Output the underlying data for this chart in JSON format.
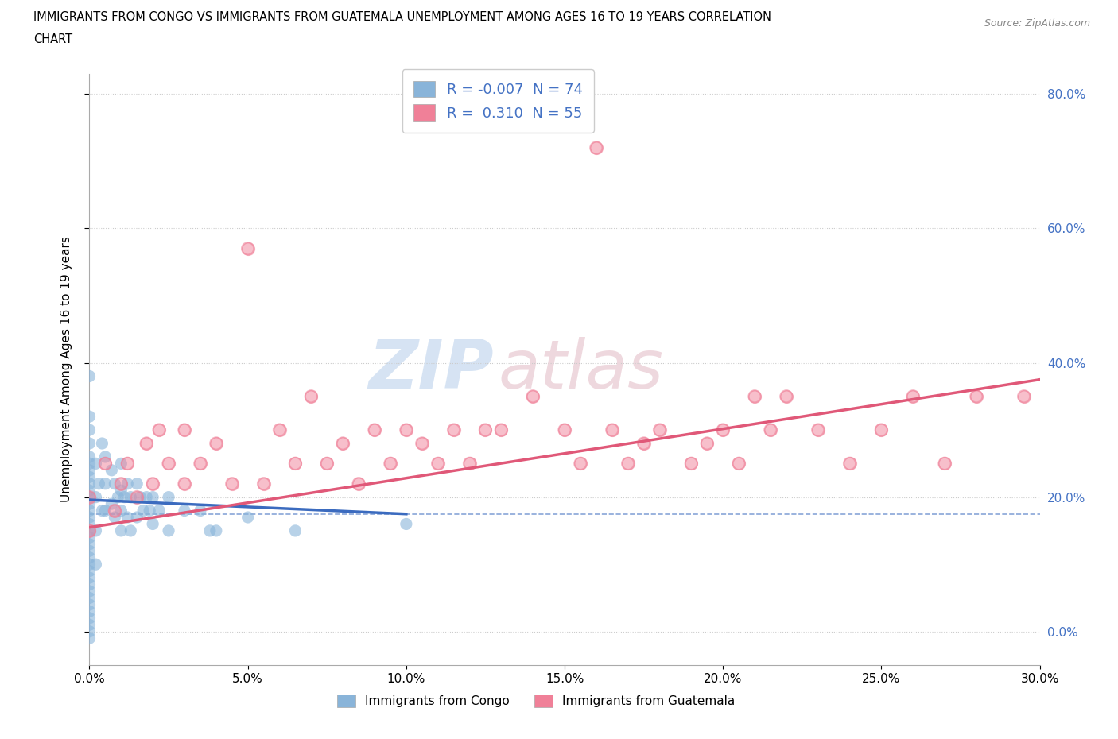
{
  "title_line1": "IMMIGRANTS FROM CONGO VS IMMIGRANTS FROM GUATEMALA UNEMPLOYMENT AMONG AGES 16 TO 19 YEARS CORRELATION",
  "title_line2": "CHART",
  "source": "Source: ZipAtlas.com",
  "ylabel": "Unemployment Among Ages 16 to 19 years",
  "xlim": [
    0.0,
    0.3
  ],
  "ylim": [
    -0.05,
    0.83
  ],
  "xtick_vals": [
    0.0,
    0.05,
    0.1,
    0.15,
    0.2,
    0.25,
    0.3
  ],
  "ytick_vals": [
    0.0,
    0.2,
    0.4,
    0.6,
    0.8
  ],
  "congo_color": "#89b4d9",
  "guatemala_color": "#f08098",
  "congo_line_color": "#3b6bbf",
  "guatemala_line_color": "#e05878",
  "R_congo": -0.007,
  "N_congo": 74,
  "R_guatemala": 0.31,
  "N_guatemala": 55,
  "congo_label": "Immigrants from Congo",
  "guatemala_label": "Immigrants from Guatemala",
  "legend_label1": "R = -0.007  N = 74",
  "legend_label2": "R =  0.310  N = 55",
  "watermark_part1": "ZIP",
  "watermark_part2": "atlas",
  "watermark_color1": "#b0c8e8",
  "watermark_color2": "#c8b0b8",
  "congo_x": [
    0.0,
    0.0,
    0.0,
    0.0,
    0.0,
    0.0,
    0.0,
    0.0,
    0.0,
    0.0,
    0.0,
    0.0,
    0.0,
    0.0,
    0.0,
    0.0,
    0.0,
    0.0,
    0.0,
    0.0,
    0.0,
    0.0,
    0.0,
    0.0,
    0.0,
    0.0,
    0.0,
    0.0,
    0.0,
    0.0,
    0.0,
    0.0,
    0.002,
    0.002,
    0.002,
    0.002,
    0.003,
    0.004,
    0.004,
    0.005,
    0.005,
    0.005,
    0.007,
    0.007,
    0.008,
    0.008,
    0.009,
    0.01,
    0.01,
    0.01,
    0.01,
    0.011,
    0.012,
    0.012,
    0.013,
    0.013,
    0.015,
    0.015,
    0.016,
    0.017,
    0.018,
    0.019,
    0.02,
    0.02,
    0.022,
    0.025,
    0.025,
    0.03,
    0.035,
    0.038,
    0.04,
    0.05,
    0.065,
    0.1
  ],
  "congo_y": [
    0.38,
    0.32,
    0.3,
    0.28,
    0.26,
    0.25,
    0.24,
    0.23,
    0.22,
    0.21,
    0.2,
    0.19,
    0.18,
    0.17,
    0.16,
    0.15,
    0.14,
    0.13,
    0.12,
    0.11,
    0.1,
    0.09,
    0.08,
    0.07,
    0.06,
    0.05,
    0.04,
    0.03,
    0.02,
    0.01,
    0.0,
    -0.01,
    0.25,
    0.2,
    0.15,
    0.1,
    0.22,
    0.28,
    0.18,
    0.26,
    0.22,
    0.18,
    0.24,
    0.19,
    0.22,
    0.17,
    0.2,
    0.25,
    0.21,
    0.18,
    0.15,
    0.2,
    0.22,
    0.17,
    0.2,
    0.15,
    0.22,
    0.17,
    0.2,
    0.18,
    0.2,
    0.18,
    0.2,
    0.16,
    0.18,
    0.2,
    0.15,
    0.18,
    0.18,
    0.15,
    0.15,
    0.17,
    0.15,
    0.16
  ],
  "guat_x": [
    0.0,
    0.0,
    0.005,
    0.008,
    0.01,
    0.012,
    0.015,
    0.018,
    0.02,
    0.022,
    0.025,
    0.03,
    0.03,
    0.035,
    0.04,
    0.045,
    0.05,
    0.055,
    0.06,
    0.065,
    0.07,
    0.075,
    0.08,
    0.085,
    0.09,
    0.095,
    0.1,
    0.105,
    0.11,
    0.115,
    0.12,
    0.125,
    0.13,
    0.14,
    0.15,
    0.155,
    0.16,
    0.165,
    0.17,
    0.175,
    0.18,
    0.19,
    0.195,
    0.2,
    0.205,
    0.21,
    0.215,
    0.22,
    0.23,
    0.24,
    0.25,
    0.26,
    0.27,
    0.28,
    0.295
  ],
  "guat_y": [
    0.15,
    0.2,
    0.25,
    0.18,
    0.22,
    0.25,
    0.2,
    0.28,
    0.22,
    0.3,
    0.25,
    0.22,
    0.3,
    0.25,
    0.28,
    0.22,
    0.57,
    0.22,
    0.3,
    0.25,
    0.35,
    0.25,
    0.28,
    0.22,
    0.3,
    0.25,
    0.3,
    0.28,
    0.25,
    0.3,
    0.25,
    0.3,
    0.3,
    0.35,
    0.3,
    0.25,
    0.72,
    0.3,
    0.25,
    0.28,
    0.3,
    0.25,
    0.28,
    0.3,
    0.25,
    0.35,
    0.3,
    0.35,
    0.3,
    0.25,
    0.3,
    0.35,
    0.25,
    0.35,
    0.35
  ]
}
